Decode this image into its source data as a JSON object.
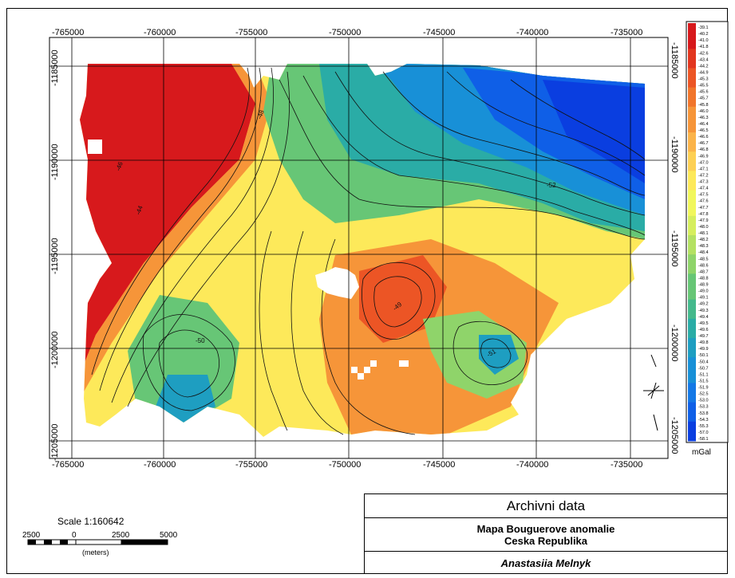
{
  "title_box": {
    "header": "Archivni data",
    "map_title_line1": "Mapa Bouguerove anomalie",
    "map_title_line2": "Ceska Republika",
    "author": "Anastasiia Melnyk"
  },
  "scale_bar": {
    "label": "Scale 1:160642",
    "tick_labels": [
      "2500",
      "0",
      "2500",
      "5000"
    ],
    "units": "(meters)"
  },
  "map": {
    "x_ticks": [
      "-765000",
      "-760000",
      "-755000",
      "-750000",
      "-745000",
      "-740000",
      "-735000"
    ],
    "y_ticks": [
      "-1185000",
      "-1190000",
      "-1195000",
      "-1200000",
      "-1205000"
    ],
    "contour_labels": [
      "-48",
      "-46",
      "-44",
      "-50",
      "-52",
      "-51",
      "-49"
    ]
  },
  "legend": {
    "unit": "mGal",
    "values": [
      "-39.1",
      "-40.2",
      "-41.0",
      "-41.8",
      "-42.6",
      "-43.4",
      "-44.2",
      "-44.9",
      "-45.3",
      "-45.5",
      "-45.6",
      "-45.7",
      "-45.8",
      "-46.0",
      "-46.3",
      "-46.4",
      "-46.5",
      "-46.6",
      "-46.7",
      "-46.8",
      "-46.9",
      "-47.0",
      "-47.1",
      "-47.2",
      "-47.3",
      "-47.4",
      "-47.5",
      "-47.6",
      "-47.7",
      "-47.8",
      "-47.9",
      "-48.0",
      "-48.1",
      "-48.2",
      "-48.3",
      "-48.4",
      "-48.5",
      "-48.6",
      "-48.7",
      "-48.8",
      "-48.9",
      "-49.0",
      "-49.1",
      "-49.2",
      "-49.3",
      "-49.4",
      "-49.5",
      "-49.6",
      "-49.7",
      "-49.8",
      "-49.9",
      "-50.1",
      "-50.4",
      "-50.7",
      "-51.1",
      "-51.5",
      "-51.9",
      "-52.5",
      "-53.0",
      "-53.3",
      "-53.8",
      "-54.3",
      "-55.3",
      "-57.0",
      "-58.1"
    ],
    "colors": [
      "#d7191c",
      "#e2361f",
      "#ec5525",
      "#f1752b",
      "#f69539",
      "#fbb44a",
      "#fdd054",
      "#fde95a",
      "#f1f75c",
      "#d6ee5e",
      "#b4e163",
      "#8fd46a",
      "#67c676",
      "#44b98c",
      "#2aaca6",
      "#1e9ec1",
      "#1890d7",
      "#1478e6",
      "#0f5fe7",
      "#0a3ee0"
    ]
  }
}
